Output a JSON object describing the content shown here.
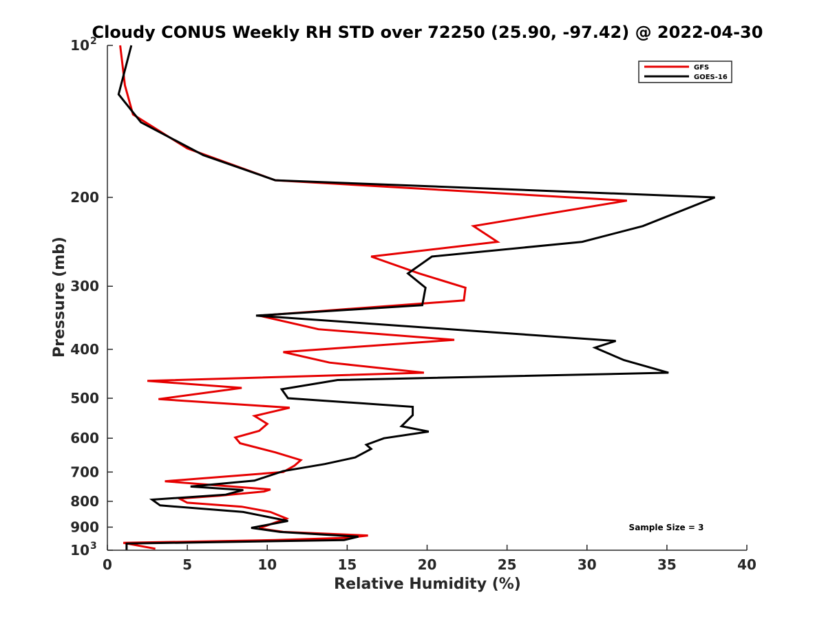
{
  "chart_data": {
    "type": "line",
    "title": "Cloudy CONUS Weekly RH STD over 72250 (25.90, -97.42) @ 2022-04-30",
    "xlabel": "Relative Humidity (%)",
    "ylabel": "Pressure (mb)",
    "xlim": [
      0,
      40
    ],
    "ylim": [
      100,
      1000
    ],
    "y_scale": "log",
    "y_reversed": true,
    "grid": false,
    "legend_position": "top-right",
    "x_ticks": [
      "0",
      "5",
      "10",
      "15",
      "20",
      "25",
      "30",
      "35",
      "40"
    ],
    "x_tick_values": [
      0,
      5,
      10,
      15,
      20,
      25,
      30,
      35,
      40
    ],
    "y_ticks": [
      {
        "value": 100,
        "base": "10",
        "exp": "2"
      },
      {
        "value": 200,
        "label": "200"
      },
      {
        "value": 300,
        "label": "300"
      },
      {
        "value": 400,
        "label": "400"
      },
      {
        "value": 500,
        "label": "500"
      },
      {
        "value": 600,
        "label": "600"
      },
      {
        "value": 700,
        "label": "700"
      },
      {
        "value": 800,
        "label": "800"
      },
      {
        "value": 900,
        "label": "900"
      },
      {
        "value": 1000,
        "base": "10",
        "exp": "3"
      }
    ],
    "annotation": "Sample Size = 3",
    "series": [
      {
        "name": "GFS",
        "color": "#e60000",
        "x": [
          0.8,
          1.1,
          1.6,
          5.0,
          10.5,
          32.5,
          22.9,
          24.4,
          16.5,
          19.5,
          22.4,
          22.3,
          9.5,
          13.2,
          21.7,
          11.0,
          13.9,
          19.8,
          2.5,
          8.4,
          3.2,
          11.4,
          9.2,
          10.0,
          9.5,
          8.0,
          8.3,
          10.5,
          12.1,
          11.7,
          11.0,
          3.6,
          10.2,
          9.8,
          7.0,
          4.5,
          5.0,
          8.4,
          10.2,
          11.2,
          9.5,
          11.0,
          16.3,
          15.0,
          10.5,
          1.0,
          3.0
        ],
        "y": [
          100,
          120,
          137,
          160,
          185,
          203,
          228,
          245,
          262,
          283,
          302,
          320,
          343,
          365,
          383,
          405,
          425,
          445,
          462,
          477,
          502,
          522,
          542,
          562,
          580,
          598,
          614,
          640,
          663,
          680,
          700,
          730,
          758,
          765,
          780,
          790,
          805,
          820,
          840,
          865,
          905,
          920,
          935,
          945,
          955,
          967,
          993
        ]
      },
      {
        "name": "GOES-16",
        "color": "#000000",
        "x": [
          1.5,
          0.7,
          2.1,
          6.0,
          10.5,
          38.0,
          33.5,
          29.7,
          20.3,
          18.8,
          19.9,
          19.7,
          9.3,
          24.1,
          31.8,
          30.5,
          32.3,
          35.1,
          14.4,
          10.9,
          11.3,
          19.1,
          19.1,
          18.4,
          20.1,
          17.3,
          16.2,
          16.5,
          15.5,
          13.6,
          11.0,
          9.2,
          5.2,
          8.5,
          7.4,
          2.8,
          3.3,
          8.5,
          11.3,
          9.0,
          10.8,
          15.7,
          14.8,
          1.2,
          1.2
        ],
        "y": [
          100,
          125,
          142,
          165,
          185,
          200,
          228,
          245,
          262,
          283,
          302,
          327,
          343,
          370,
          385,
          397,
          420,
          445,
          460,
          480,
          500,
          520,
          540,
          568,
          582,
          600,
          618,
          630,
          655,
          675,
          697,
          728,
          748,
          760,
          776,
          794,
          815,
          840,
          875,
          903,
          920,
          940,
          955,
          970,
          1000
        ]
      }
    ]
  }
}
